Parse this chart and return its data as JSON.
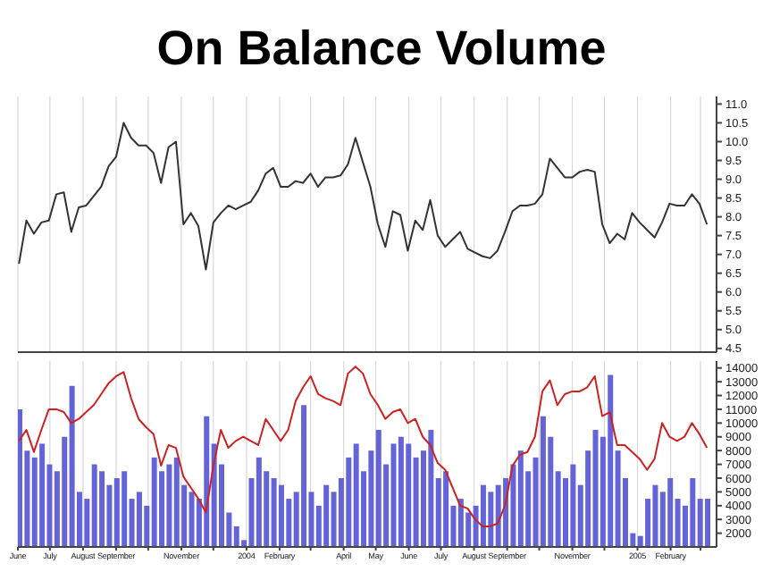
{
  "chart_data": [
    {
      "type": "line",
      "title": "On Balance Volume",
      "tick_labels": "y",
      "grid": "x",
      "legend": false,
      "marker": "none",
      "line_style": "solid",
      "x": [
        "2003-06-02",
        "2003-06-09",
        "2003-06-16",
        "2003-06-23",
        "2003-06-30",
        "2003-07-07",
        "2003-07-14",
        "2003-07-21",
        "2003-07-28",
        "2003-08-04",
        "2003-08-11",
        "2003-08-18",
        "2003-08-25",
        "2003-09-01",
        "2003-09-08",
        "2003-09-15",
        "2003-09-22",
        "2003-09-29",
        "2003-10-06",
        "2003-10-13",
        "2003-10-20",
        "2003-10-27",
        "2003-11-03",
        "2003-11-10",
        "2003-11-17",
        "2003-11-24",
        "2003-12-01",
        "2003-12-08",
        "2003-12-15",
        "2003-12-22",
        "2003-12-29",
        "2004-01-05",
        "2004-01-12",
        "2004-01-19",
        "2004-01-26",
        "2004-02-02",
        "2004-02-09",
        "2004-02-16",
        "2004-02-23",
        "2004-03-01",
        "2004-03-08",
        "2004-03-15",
        "2004-03-22",
        "2004-03-29",
        "2004-04-05",
        "2004-04-12",
        "2004-04-19",
        "2004-04-26",
        "2004-05-03",
        "2004-05-10",
        "2004-05-17",
        "2004-05-24",
        "2004-05-31",
        "2004-06-07",
        "2004-06-14",
        "2004-06-21",
        "2004-06-28",
        "2004-07-05",
        "2004-07-12",
        "2004-07-19",
        "2004-07-26",
        "2004-08-02",
        "2004-08-09",
        "2004-08-16",
        "2004-08-23",
        "2004-08-30",
        "2004-09-06",
        "2004-09-13",
        "2004-09-20",
        "2004-09-27",
        "2004-10-04",
        "2004-10-11",
        "2004-10-18",
        "2004-10-25",
        "2004-11-01",
        "2004-11-08",
        "2004-11-15",
        "2004-11-22",
        "2004-11-29",
        "2004-12-06",
        "2004-12-13",
        "2004-12-20",
        "2004-12-27",
        "2005-01-03",
        "2005-01-10",
        "2005-01-17",
        "2005-01-24",
        "2005-01-31",
        "2005-02-07",
        "2005-02-14",
        "2005-02-21",
        "2005-02-28",
        "2005-03-07"
      ],
      "xlim": [
        "2003-06-01",
        "2005-03-16"
      ],
      "xticks": [
        {
          "value": "2003-06-01",
          "label": null
        },
        {
          "value": "2003-07-01",
          "label": null
        },
        {
          "value": "2003-08-01",
          "label": null
        },
        {
          "value": "2003-09-01",
          "label": null
        },
        {
          "value": "2003-10-01",
          "label": null
        },
        {
          "value": "2003-11-01",
          "label": null
        },
        {
          "value": "2003-12-01",
          "label": null
        },
        {
          "value": "2004-01-01",
          "label": null
        },
        {
          "value": "2004-02-01",
          "label": null
        },
        {
          "value": "2004-03-01",
          "label": null
        },
        {
          "value": "2004-04-01",
          "label": null
        },
        {
          "value": "2004-05-01",
          "label": null
        },
        {
          "value": "2004-06-01",
          "label": null
        },
        {
          "value": "2004-07-01",
          "label": null
        },
        {
          "value": "2004-08-01",
          "label": null
        },
        {
          "value": "2004-09-01",
          "label": null
        },
        {
          "value": "2004-10-01",
          "label": null
        },
        {
          "value": "2004-11-01",
          "label": null
        },
        {
          "value": "2004-12-01",
          "label": null
        },
        {
          "value": "2005-01-01",
          "label": null
        },
        {
          "value": "2005-02-01",
          "label": null
        },
        {
          "value": "2005-03-01",
          "label": null
        }
      ],
      "ylim": [
        4.4,
        11.2
      ],
      "yticks": [
        {
          "value": 4.5,
          "label": "4.5"
        },
        {
          "value": 5,
          "label": "5.0"
        },
        {
          "value": 5.5,
          "label": "5.5"
        },
        {
          "value": 6,
          "label": "6.0"
        },
        {
          "value": 6.5,
          "label": "6.5"
        },
        {
          "value": 7,
          "label": "7.0"
        },
        {
          "value": 7.5,
          "label": "7.5"
        },
        {
          "value": 8,
          "label": "8.0"
        },
        {
          "value": 8.5,
          "label": "8.5"
        },
        {
          "value": 9,
          "label": "9.0"
        },
        {
          "value": 9.5,
          "label": "9.5"
        },
        {
          "value": 10,
          "label": "10.0"
        },
        {
          "value": 10.5,
          "label": "10.5"
        },
        {
          "value": 11,
          "label": "11.0"
        }
      ],
      "series": [
        {
          "color": "#333333",
          "values": [
            6.75,
            7.9,
            7.55,
            7.85,
            7.9,
            8.6,
            8.65,
            7.6,
            8.25,
            8.3,
            8.55,
            8.8,
            9.35,
            9.6,
            10.5,
            10.1,
            9.9,
            9.9,
            9.7,
            8.9,
            9.85,
            10.0,
            7.8,
            8.1,
            7.75,
            6.6,
            7.85,
            8.1,
            8.3,
            8.2,
            8.3,
            8.4,
            8.7,
            9.15,
            9.3,
            8.8,
            8.8,
            8.95,
            8.9,
            9.15,
            8.8,
            9.05,
            9.05,
            9.1,
            9.4,
            10.1,
            9.45,
            8.8,
            7.8,
            7.2,
            8.15,
            8.05,
            7.1,
            7.9,
            7.65,
            8.45,
            7.5,
            7.2,
            7.4,
            7.6,
            7.15,
            7.05,
            6.95,
            6.9,
            7.1,
            7.6,
            8.15,
            8.3,
            8.3,
            8.35,
            8.6,
            9.55,
            9.3,
            9.05,
            9.05,
            9.2,
            9.25,
            9.2,
            7.8,
            7.3,
            7.55,
            7.4,
            8.1,
            7.85,
            7.65,
            7.45,
            7.85,
            8.35,
            8.3,
            8.3,
            8.6,
            8.35,
            7.8
          ]
        }
      ]
    },
    {
      "type": "bar",
      "grid": "x",
      "legend": false,
      "x": [
        "2003-06-02",
        "2003-06-09",
        "2003-06-16",
        "2003-06-23",
        "2003-06-30",
        "2003-07-07",
        "2003-07-14",
        "2003-07-21",
        "2003-07-28",
        "2003-08-04",
        "2003-08-11",
        "2003-08-18",
        "2003-08-25",
        "2003-09-01",
        "2003-09-08",
        "2003-09-15",
        "2003-09-22",
        "2003-09-29",
        "2003-10-06",
        "2003-10-13",
        "2003-10-20",
        "2003-10-27",
        "2003-11-03",
        "2003-11-10",
        "2003-11-17",
        "2003-11-24",
        "2003-12-01",
        "2003-12-08",
        "2003-12-15",
        "2003-12-22",
        "2003-12-29",
        "2004-01-05",
        "2004-01-12",
        "2004-01-19",
        "2004-01-26",
        "2004-02-02",
        "2004-02-09",
        "2004-02-16",
        "2004-02-23",
        "2004-03-01",
        "2004-03-08",
        "2004-03-15",
        "2004-03-22",
        "2004-03-29",
        "2004-04-05",
        "2004-04-12",
        "2004-04-19",
        "2004-04-26",
        "2004-05-03",
        "2004-05-10",
        "2004-05-17",
        "2004-05-24",
        "2004-05-31",
        "2004-06-07",
        "2004-06-14",
        "2004-06-21",
        "2004-06-28",
        "2004-07-05",
        "2004-07-12",
        "2004-07-19",
        "2004-07-26",
        "2004-08-02",
        "2004-08-09",
        "2004-08-16",
        "2004-08-23",
        "2004-08-30",
        "2004-09-06",
        "2004-09-13",
        "2004-09-20",
        "2004-09-27",
        "2004-10-04",
        "2004-10-11",
        "2004-10-18",
        "2004-10-25",
        "2004-11-01",
        "2004-11-08",
        "2004-11-15",
        "2004-11-22",
        "2004-11-29",
        "2004-12-06",
        "2004-12-13",
        "2004-12-20",
        "2004-12-27",
        "2005-01-03",
        "2005-01-10",
        "2005-01-17",
        "2005-01-24",
        "2005-01-31",
        "2005-02-07",
        "2005-02-14",
        "2005-02-21",
        "2005-02-28",
        "2005-03-07"
      ],
      "xlim": [
        "2003-06-01",
        "2005-03-16"
      ],
      "xticks": [
        {
          "value": "2003-06-01",
          "label": "June"
        },
        {
          "value": "2003-07-01",
          "label": "July"
        },
        {
          "value": "2003-08-01",
          "label": "August"
        },
        {
          "value": "2003-09-01",
          "label": "September"
        },
        {
          "value": "2003-10-01",
          "label": null
        },
        {
          "value": "2003-11-01",
          "label": "November"
        },
        {
          "value": "2003-12-01",
          "label": null
        },
        {
          "value": "2004-01-01",
          "label": "2004"
        },
        {
          "value": "2004-02-01",
          "label": "February"
        },
        {
          "value": "2004-03-01",
          "label": null
        },
        {
          "value": "2004-04-01",
          "label": "April"
        },
        {
          "value": "2004-05-01",
          "label": "May"
        },
        {
          "value": "2004-06-01",
          "label": "June"
        },
        {
          "value": "2004-07-01",
          "label": "July"
        },
        {
          "value": "2004-08-01",
          "label": "August"
        },
        {
          "value": "2004-09-01",
          "label": "September"
        },
        {
          "value": "2004-10-01",
          "label": null
        },
        {
          "value": "2004-11-01",
          "label": "November"
        },
        {
          "value": "2004-12-01",
          "label": null
        },
        {
          "value": "2005-01-01",
          "label": "2005"
        },
        {
          "value": "2005-02-01",
          "label": "February"
        },
        {
          "value": "2005-03-01",
          "label": null
        }
      ],
      "ylim": [
        1000,
        14500
      ],
      "yticks": [
        2000,
        3000,
        4000,
        5000,
        6000,
        7000,
        8000,
        9000,
        10000,
        11000,
        12000,
        13000,
        14000
      ],
      "series": [
        {
          "color": "#6464d8",
          "values": [
            11000,
            8000,
            7500,
            8500,
            7000,
            6500,
            9000,
            12700,
            5000,
            4500,
            7000,
            6500,
            5500,
            6000,
            6500,
            4500,
            5000,
            4000,
            7500,
            6500,
            7000,
            7500,
            5500,
            5000,
            4500,
            10500,
            8500,
            7000,
            3500,
            2500,
            1500,
            6000,
            7500,
            6500,
            6000,
            5500,
            4500,
            5000,
            11300,
            5000,
            4000,
            5500,
            5000,
            6000,
            7500,
            8500,
            6500,
            8000,
            9500,
            7000,
            8500,
            9000,
            8500,
            7500,
            8000,
            9500,
            6000,
            6500,
            4000,
            4500,
            3500,
            4000,
            5500,
            5000,
            5500,
            6000,
            7000,
            8000,
            6500,
            7500,
            10500,
            9000,
            6500,
            6000,
            7000,
            5500,
            8000,
            9500,
            9000,
            13500,
            8000,
            6000,
            2000,
            1800,
            4500,
            5500,
            5000,
            6000,
            4500,
            4000,
            6000,
            4500,
            4500
          ]
        },
        {
          "type": "line",
          "color": "#cc2222",
          "values": [
            8700,
            9500,
            7900,
            9500,
            11000,
            11000,
            10800,
            10000,
            10300,
            10800,
            11300,
            12100,
            12900,
            13400,
            13700,
            11800,
            10300,
            9700,
            9200,
            6900,
            8400,
            8200,
            6100,
            5300,
            4500,
            3500,
            6900,
            9500,
            8200,
            8700,
            9000,
            8700,
            8400,
            10300,
            9500,
            8700,
            9500,
            11600,
            12600,
            13400,
            12100,
            11800,
            11600,
            11300,
            13600,
            14100,
            13600,
            12100,
            11300,
            10300,
            10800,
            11000,
            10000,
            10300,
            9000,
            8400,
            7100,
            6600,
            5300,
            4000,
            3800,
            3000,
            2500,
            2500,
            2700,
            4000,
            6900,
            7700,
            7900,
            9000,
            12300,
            13100,
            11300,
            12100,
            12300,
            12300,
            12600,
            13400,
            10500,
            10800,
            8400,
            8400,
            7900,
            7400,
            6600,
            7400,
            10000,
            9000,
            8700,
            9000,
            10000,
            9200,
            8200
          ]
        }
      ]
    }
  ]
}
